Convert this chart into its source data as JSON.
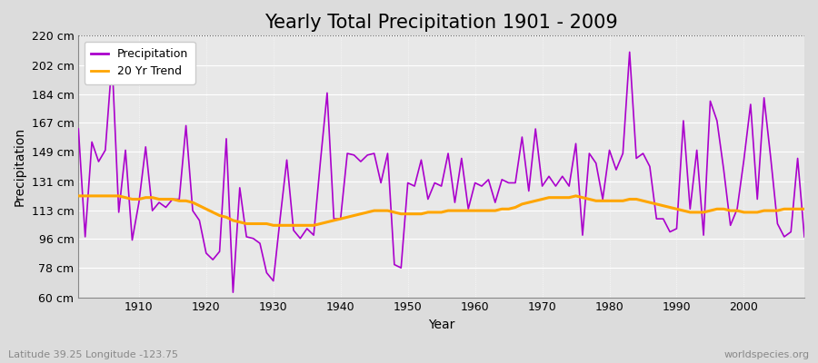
{
  "title": "Yearly Total Precipitation 1901 - 2009",
  "xlabel": "Year",
  "ylabel": "Precipitation",
  "subtitle": "Latitude 39.25 Longitude -123.75",
  "watermark": "worldspecies.org",
  "years": [
    1901,
    1902,
    1903,
    1904,
    1905,
    1906,
    1907,
    1908,
    1909,
    1910,
    1911,
    1912,
    1913,
    1914,
    1915,
    1916,
    1917,
    1918,
    1919,
    1920,
    1921,
    1922,
    1923,
    1924,
    1925,
    1926,
    1927,
    1928,
    1929,
    1930,
    1931,
    1932,
    1933,
    1934,
    1935,
    1936,
    1937,
    1938,
    1939,
    1940,
    1941,
    1942,
    1943,
    1944,
    1945,
    1946,
    1947,
    1948,
    1949,
    1950,
    1951,
    1952,
    1953,
    1954,
    1955,
    1956,
    1957,
    1958,
    1959,
    1960,
    1961,
    1962,
    1963,
    1964,
    1965,
    1966,
    1967,
    1968,
    1969,
    1970,
    1971,
    1972,
    1973,
    1974,
    1975,
    1976,
    1977,
    1978,
    1979,
    1980,
    1981,
    1982,
    1983,
    1984,
    1985,
    1986,
    1987,
    1988,
    1989,
    1990,
    1991,
    1992,
    1993,
    1994,
    1995,
    1996,
    1997,
    1998,
    1999,
    2000,
    2001,
    2002,
    2003,
    2004,
    2005,
    2006,
    2007,
    2008,
    2009
  ],
  "precip": [
    163,
    97,
    155,
    143,
    150,
    205,
    112,
    150,
    95,
    118,
    152,
    113,
    118,
    115,
    120,
    120,
    165,
    113,
    107,
    87,
    83,
    88,
    157,
    63,
    127,
    97,
    96,
    93,
    75,
    70,
    108,
    144,
    101,
    96,
    102,
    98,
    143,
    185,
    108,
    108,
    148,
    147,
    143,
    147,
    148,
    130,
    148,
    80,
    78,
    130,
    128,
    144,
    120,
    130,
    128,
    148,
    118,
    145,
    114,
    130,
    128,
    132,
    118,
    132,
    130,
    130,
    158,
    125,
    163,
    128,
    134,
    128,
    134,
    128,
    154,
    98,
    148,
    142,
    120,
    150,
    138,
    148,
    210,
    145,
    148,
    140,
    108,
    108,
    100,
    102,
    168,
    114,
    150,
    98,
    180,
    168,
    138,
    104,
    114,
    144,
    178,
    120,
    182,
    145,
    105,
    97,
    100,
    145,
    97
  ],
  "trend": [
    122,
    122,
    122,
    122,
    122,
    122,
    122,
    121,
    120,
    120,
    121,
    121,
    120,
    120,
    120,
    119,
    119,
    118,
    116,
    114,
    112,
    110,
    109,
    107,
    106,
    105,
    105,
    105,
    105,
    104,
    104,
    104,
    104,
    104,
    104,
    104,
    105,
    106,
    107,
    108,
    109,
    110,
    111,
    112,
    113,
    113,
    113,
    112,
    111,
    111,
    111,
    111,
    112,
    112,
    112,
    113,
    113,
    113,
    113,
    113,
    113,
    113,
    113,
    114,
    114,
    115,
    117,
    118,
    119,
    120,
    121,
    121,
    121,
    121,
    122,
    121,
    120,
    119,
    119,
    119,
    119,
    119,
    120,
    120,
    119,
    118,
    117,
    116,
    115,
    114,
    113,
    112,
    112,
    112,
    113,
    114,
    114,
    113,
    113,
    112,
    112,
    112,
    113,
    113,
    113,
    114,
    114,
    114,
    114
  ],
  "precip_color": "#AA00CC",
  "trend_color": "#FFA500",
  "bg_color": "#DCDCDC",
  "plot_bg_color": "#E8E8E8",
  "grid_color": "#FFFFFF",
  "ylim": [
    60,
    220
  ],
  "yticks": [
    60,
    78,
    96,
    113,
    131,
    149,
    167,
    184,
    202,
    220
  ],
  "ytick_labels": [
    "60 cm",
    "78 cm",
    "96 cm",
    "113 cm",
    "131 cm",
    "149 cm",
    "167 cm",
    "184 cm",
    "202 cm",
    "220 cm"
  ],
  "xticks": [
    1910,
    1920,
    1930,
    1940,
    1950,
    1960,
    1970,
    1980,
    1990,
    2000
  ],
  "legend_labels": [
    "Precipitation",
    "20 Yr Trend"
  ],
  "title_fontsize": 15,
  "axis_fontsize": 10,
  "tick_fontsize": 9
}
